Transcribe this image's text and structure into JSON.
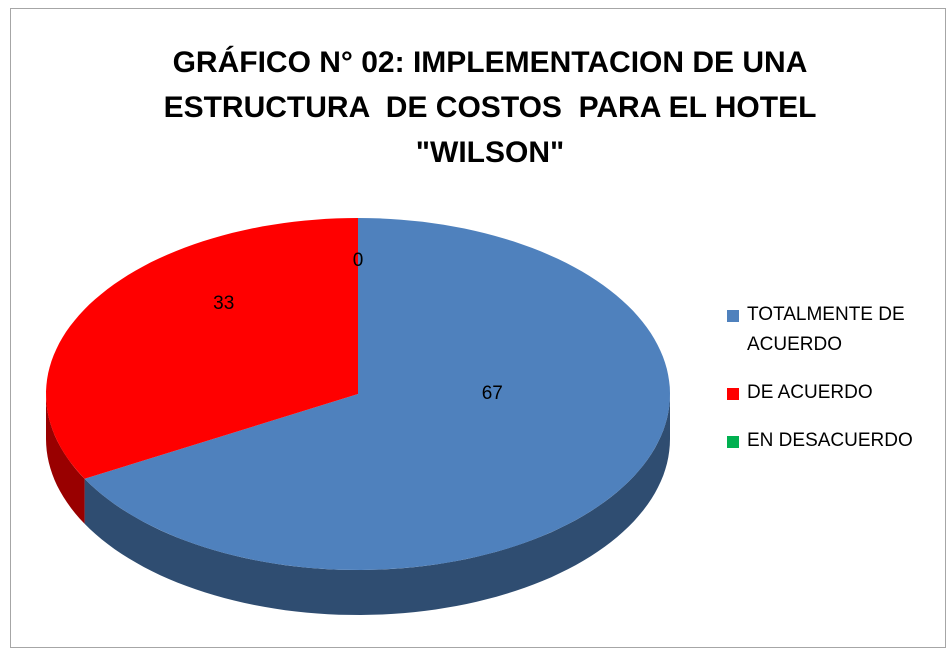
{
  "chart_data": {
    "type": "pie",
    "title": "GRÁFICO N° 02: IMPLEMENTACION DE UNA ESTRUCTURA  DE COSTOS  PARA EL HOTEL \"WILSON\"",
    "categories": [
      "TOTALMENTE DE ACUERDO",
      "DE ACUERDO",
      "EN DESACUERDO"
    ],
    "values": [
      67,
      33,
      0
    ],
    "colors": [
      "#4f81bd",
      "#ff0000",
      "#00b050"
    ],
    "legend": "right"
  }
}
